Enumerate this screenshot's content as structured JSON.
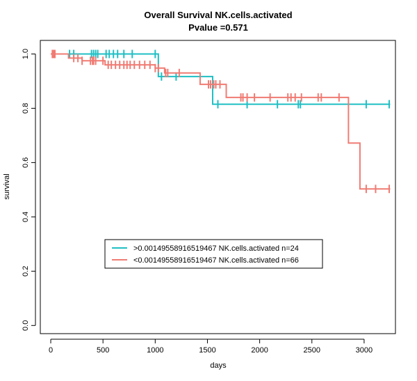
{
  "chart_data": {
    "type": "line",
    "title": "Overall Survival NK.cells.activated",
    "subtitle": "Pvalue =0.571",
    "xlabel": "days",
    "ylabel": "survival",
    "xlim": [
      -100,
      3300
    ],
    "ylim": [
      -0.03,
      1.05
    ],
    "x_ticks": [
      0,
      500,
      1000,
      1500,
      2000,
      2500,
      3000
    ],
    "y_ticks": [
      0.0,
      0.2,
      0.4,
      0.6,
      0.8,
      1.0
    ],
    "y_tick_labels": [
      "0.0",
      "0.2",
      "0.4",
      "0.6",
      "0.8",
      "1.0"
    ],
    "grid": false,
    "legend_position": "center-left",
    "series": [
      {
        "name": ">0.00149558916519467 NK.cells.activated n=24",
        "color": "#1fbfc4",
        "steps": [
          [
            0,
            1.0
          ],
          [
            1030,
            0.917
          ],
          [
            1550,
            0.815
          ],
          [
            3250,
            0.815
          ]
        ],
        "censor_x": [
          25,
          180,
          220,
          390,
          410,
          430,
          450,
          530,
          560,
          600,
          640,
          700,
          780,
          1000,
          1060,
          1200,
          1600,
          1880,
          2170,
          2370,
          2390,
          3020,
          3240
        ]
      },
      {
        "name": "<0.00149558916519467 NK.cells.activated n=66",
        "color": "#f07b73",
        "steps": [
          [
            0,
            1.0
          ],
          [
            170,
            0.985
          ],
          [
            300,
            0.975
          ],
          [
            520,
            0.96
          ],
          [
            1000,
            0.948
          ],
          [
            1090,
            0.93
          ],
          [
            1430,
            0.888
          ],
          [
            1680,
            0.84
          ],
          [
            2850,
            0.672
          ],
          [
            2960,
            0.503
          ],
          [
            3250,
            0.503
          ]
        ],
        "censor_x": [
          15,
          25,
          30,
          40,
          220,
          260,
          300,
          380,
          400,
          410,
          430,
          500,
          550,
          580,
          620,
          660,
          700,
          730,
          760,
          800,
          850,
          900,
          950,
          1000,
          1030,
          1100,
          1120,
          1230,
          1510,
          1530,
          1560,
          1580,
          1620,
          1820,
          1840,
          1880,
          1950,
          2100,
          2270,
          2300,
          2340,
          2400,
          2560,
          2590,
          2760,
          3020,
          3110,
          3240
        ]
      }
    ]
  }
}
